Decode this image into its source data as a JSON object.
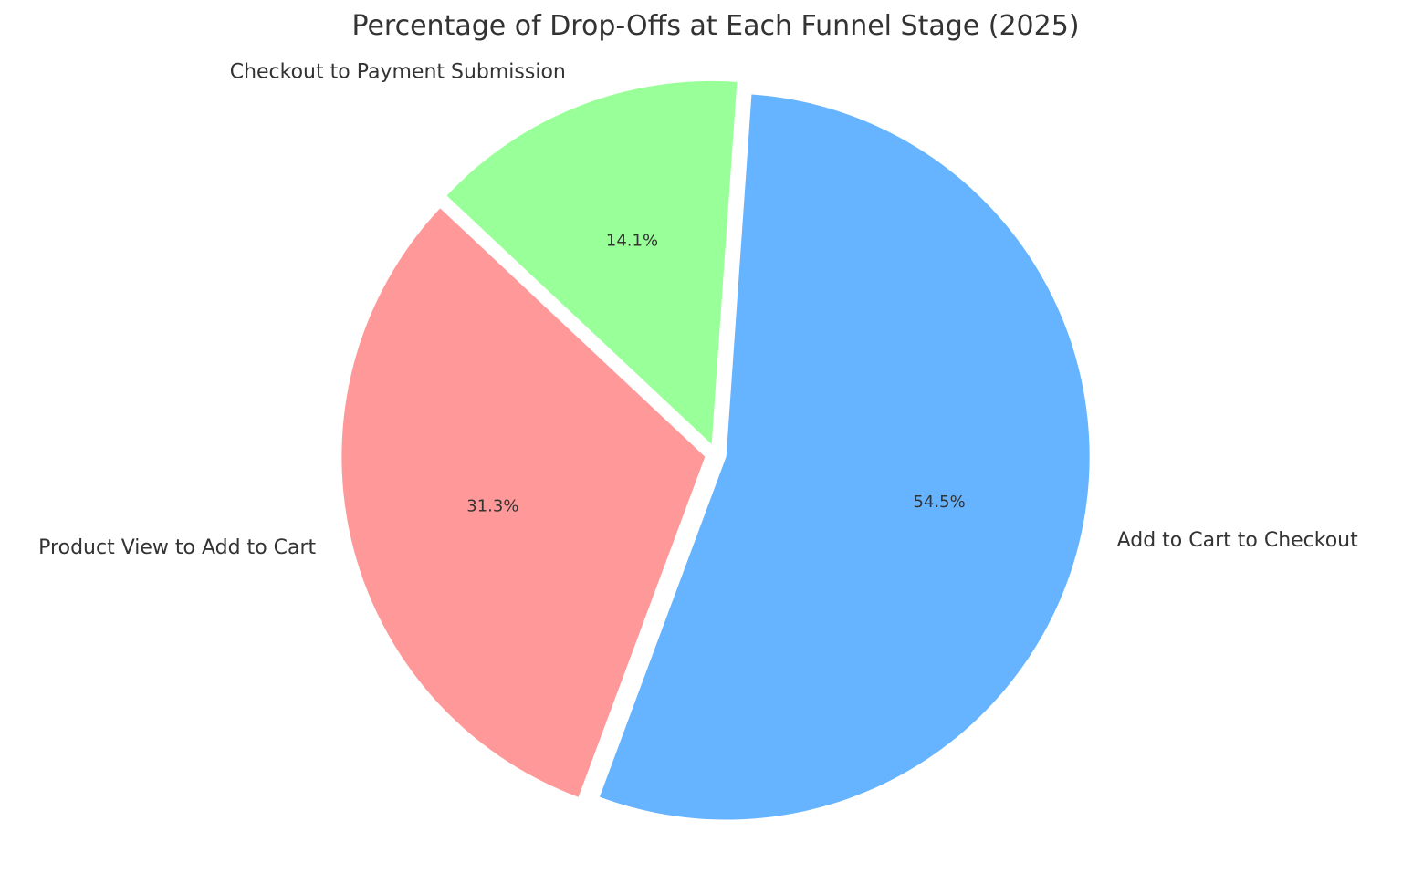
{
  "chart_data": {
    "type": "pie",
    "title": "Percentage of Drop-Offs at Each Funnel Stage (2025)",
    "start_angle_deg": 86,
    "direction": "clockwise",
    "slices": [
      {
        "label": "Add to Cart to Checkout",
        "value": 54.5,
        "pct_label": "54.5%",
        "color": "#66b3ff",
        "explode": 0.03
      },
      {
        "label": "Product View to Add to Cart",
        "value": 31.3,
        "pct_label": "31.3%",
        "color": "#ff9999",
        "explode": 0.03
      },
      {
        "label": "Checkout to Payment Submission",
        "value": 14.1,
        "pct_label": "14.1%",
        "color": "#99ff99",
        "explode": 0.03
      }
    ],
    "legend": "none",
    "grid": false
  }
}
